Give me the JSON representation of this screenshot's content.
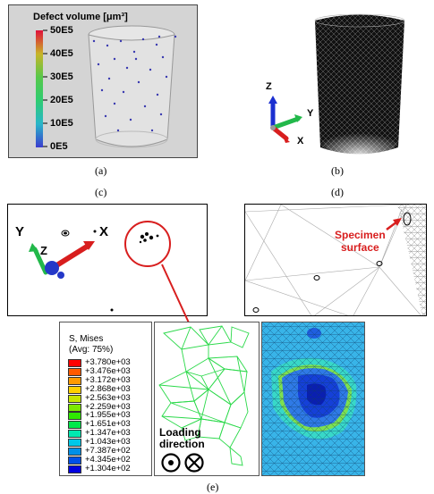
{
  "panel_a": {
    "legend_title": "Defect volume [μm³]",
    "ticks": [
      "50E5",
      "40E5",
      "30E5",
      "20E5",
      "10E5",
      "0E5"
    ],
    "colors": [
      "#e0103a",
      "#c8b428",
      "#57c84a",
      "#2ecc71",
      "#29b6c9",
      "#3b3ccf"
    ]
  },
  "panel_b": {
    "axis_z": "Z",
    "axis_y": "Y",
    "axis_x": "X"
  },
  "panel_c": {
    "axis_y": "Y",
    "axis_z": "Z",
    "axis_x": "X"
  },
  "panel_d": {
    "annotation": [
      "Specimen",
      "surface"
    ]
  },
  "panel_e": {
    "legend_title": [
      "S, Mises",
      "(Avg: 75%)"
    ],
    "values": [
      "+3.780e+03",
      "+3.476e+03",
      "+3.172e+03",
      "+2.868e+03",
      "+2.563e+03",
      "+2.259e+03",
      "+1.955e+03",
      "+1.651e+03",
      "+1.347e+03",
      "+1.043e+03",
      "+7.387e+02",
      "+4.345e+02",
      "+1.304e+02"
    ],
    "colors": [
      "#ff0000",
      "#ff5a00",
      "#ff9a00",
      "#ffd000",
      "#c8e600",
      "#7ce800",
      "#2ee800",
      "#00e84a",
      "#00e8b0",
      "#00c8e8",
      "#0090e8",
      "#0050e8",
      "#0000e0"
    ],
    "loading_label": [
      "Loading",
      "direction"
    ]
  },
  "captions": {
    "a": "(a)",
    "b": "(b)",
    "c": "(c)",
    "d": "(d)",
    "e": "(e)"
  }
}
